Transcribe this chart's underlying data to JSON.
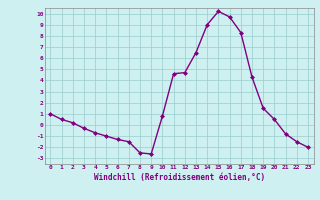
{
  "x": [
    0,
    1,
    2,
    3,
    4,
    5,
    6,
    7,
    8,
    9,
    10,
    11,
    12,
    13,
    14,
    15,
    16,
    17,
    18,
    19,
    20,
    21,
    22,
    23
  ],
  "y": [
    1,
    0.5,
    0.2,
    -0.3,
    -0.7,
    -1.0,
    -1.3,
    -1.5,
    -2.5,
    -2.6,
    0.8,
    4.6,
    4.7,
    6.5,
    9.0,
    10.2,
    9.7,
    8.3,
    4.3,
    1.5,
    0.5,
    -0.8,
    -1.5,
    -2.0
  ],
  "line_color": "#800080",
  "marker": "D",
  "marker_size": 2.0,
  "bg_color": "#cff0f0",
  "grid_color": "#99cccc",
  "xlim": [
    -0.5,
    23.5
  ],
  "ylim": [
    -3.5,
    10.5
  ],
  "xlabel": "Windchill (Refroidissement éolien,°C)",
  "xlabel_color": "#800080",
  "tick_color": "#800080",
  "yticks": [
    -3,
    -2,
    -1,
    0,
    1,
    2,
    3,
    4,
    5,
    6,
    7,
    8,
    9,
    10
  ],
  "xticks": [
    0,
    1,
    2,
    3,
    4,
    5,
    6,
    7,
    8,
    9,
    10,
    11,
    12,
    13,
    14,
    15,
    16,
    17,
    18,
    19,
    20,
    21,
    22,
    23
  ]
}
